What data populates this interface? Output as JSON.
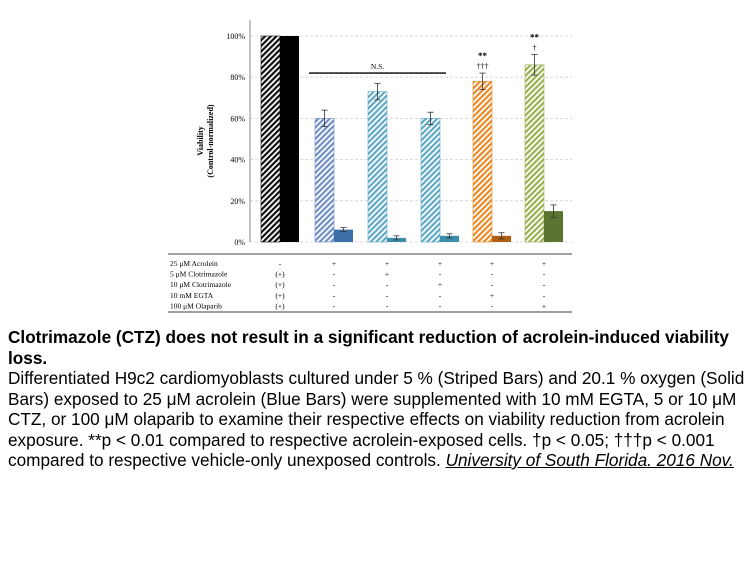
{
  "chart_data": {
    "type": "bar",
    "ylabel": [
      "Viability",
      "(Control-normalized)"
    ],
    "ylim": [
      0,
      100
    ],
    "yticks": [
      "0%",
      "20%",
      "40%",
      "60%",
      "80%",
      "100%"
    ],
    "grid": true,
    "groups": [
      {
        "striped": 100,
        "solid": 100,
        "striped_err": 0,
        "solid_err": 0,
        "striped_color": "#111111",
        "solid_color": "#000000",
        "stars": "",
        "daggers": ""
      },
      {
        "striped": 60,
        "solid": 6,
        "striped_err": 4,
        "solid_err": 1,
        "striped_color": "#6f8fc6",
        "solid_color": "#3b6fa6",
        "stars": "",
        "daggers": ""
      },
      {
        "striped": 73,
        "solid": 2,
        "striped_err": 4,
        "solid_err": 1,
        "striped_color": "#5fa9c4",
        "solid_color": "#3c8fab",
        "stars": "",
        "daggers": ""
      },
      {
        "striped": 60,
        "solid": 3,
        "striped_err": 3,
        "solid_err": 1,
        "striped_color": "#5fa9c4",
        "solid_color": "#3c8fab",
        "stars": "",
        "daggers": ""
      },
      {
        "striped": 78,
        "solid": 3,
        "striped_err": 4,
        "solid_err": 1.5,
        "striped_color": "#e88a28",
        "solid_color": "#b35e10",
        "stars": "**",
        "daggers": "†††"
      },
      {
        "striped": 86,
        "solid": 15,
        "striped_err": 5,
        "solid_err": 3,
        "striped_color": "#9bb050",
        "solid_color": "#5b7530",
        "stars": "**",
        "daggers": "†"
      }
    ],
    "significance": {
      "label": "N.S.",
      "from_group": 1,
      "to_group": 3,
      "level": 82
    },
    "conditions": [
      {
        "label": "25 μM Acrolein",
        "marks": [
          "-",
          "+",
          "+",
          "+",
          "+",
          "+"
        ]
      },
      {
        "label": "5 μM Clotrimazole",
        "marks": [
          "(+)",
          "-",
          "+",
          "-",
          "-",
          "-"
        ]
      },
      {
        "label": "10 μM Clotrimazole",
        "marks": [
          "(+)",
          "-",
          "-",
          "+",
          "-",
          "-"
        ]
      },
      {
        "label": "10 mM EGTA",
        "marks": [
          "(+)",
          "-",
          "-",
          "-",
          "+",
          "-"
        ]
      },
      {
        "label": "100 μM Olaparib",
        "marks": [
          "(+)",
          "-",
          "-",
          "-",
          "-",
          "+"
        ]
      }
    ]
  },
  "caption": {
    "title": "Clotrimazole (CTZ) does not result in a significant reduction of acrolein-induced viability loss.",
    "body": "Differentiated H9c2 cardiomyoblasts cultured under 5 % (Striped Bars) and 20.1 % oxygen (Solid Bars) exposed to 25 μM acrolein (Blue Bars) were supplemented with 10 mM EGTA, 5 or 10 μM CTZ, or 100 μM olaparib to examine their respective effects on viability reduction from acrolein exposure. **p < 0.01 compared to respective acrolein-exposed cells. †p < 0.05; †††p < 0.001 compared to respective vehicle-only unexposed controls.",
    "source": "University of South Florida. 2016 Nov."
  }
}
